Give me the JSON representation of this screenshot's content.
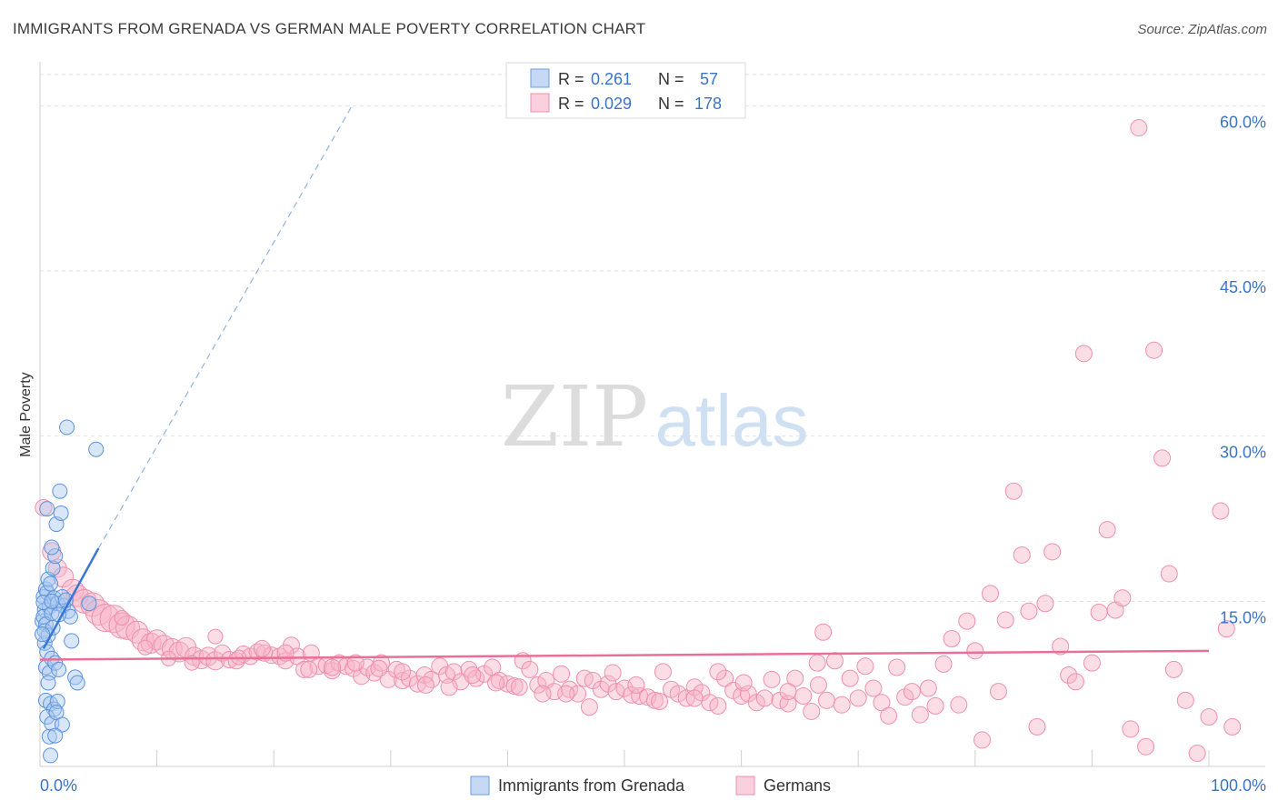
{
  "header": {
    "title": "IMMIGRANTS FROM GRENADA VS GERMAN MALE POVERTY CORRELATION CHART",
    "source": "Source: ZipAtlas.com"
  },
  "watermark": {
    "zip": "ZIP",
    "atlas": "atlas"
  },
  "legend_stats": [
    {
      "r_label": "R =",
      "r_value": "0.261",
      "n_label": "N =",
      "n_value": "57",
      "color": "#6a9fe0"
    },
    {
      "r_label": "R =",
      "r_value": "0.029",
      "n_label": "N =",
      "n_value": "178",
      "color": "#f08cab"
    }
  ],
  "legend_bottom": [
    {
      "label": "Immigrants from Grenada",
      "color": "#6a9fe0"
    },
    {
      "label": "Germans",
      "color": "#f08cab"
    }
  ],
  "chart_data": {
    "type": "scatter",
    "title": "IMMIGRANTS FROM GRENADA VS GERMAN MALE POVERTY CORRELATION CHART",
    "xlabel": "",
    "ylabel": "Male Poverty",
    "xlim": [
      0,
      100
    ],
    "ylim": [
      0,
      63
    ],
    "x_tick_labels": [
      "0.0%",
      "100.0%"
    ],
    "y_ticks": [
      15,
      30,
      45,
      60
    ],
    "y_tick_labels": [
      "15.0%",
      "30.0%",
      "45.0%",
      "60.0%"
    ],
    "grid": true,
    "legend_position": "top-center",
    "series": [
      {
        "name": "Immigrants from Grenada",
        "color": "#6a9fe0",
        "trend": {
          "x": [
            0.3,
            5.0
          ],
          "y": [
            10.7,
            19.8
          ]
        },
        "trend_extension": {
          "x": [
            5.0,
            26.8
          ],
          "y": [
            19.8,
            60.2
          ]
        },
        "points": [
          [
            0.2,
            13.2
          ],
          [
            0.3,
            15.4
          ],
          [
            0.4,
            14.2
          ],
          [
            0.5,
            16.1
          ],
          [
            0.6,
            15.8
          ],
          [
            0.3,
            13.6
          ],
          [
            0.5,
            12.9
          ],
          [
            0.8,
            14.5
          ],
          [
            1.0,
            13.9
          ],
          [
            1.2,
            15.3
          ],
          [
            0.7,
            17.0
          ],
          [
            0.9,
            16.6
          ],
          [
            0.4,
            11.2
          ],
          [
            0.6,
            10.4
          ],
          [
            1.1,
            18.0
          ],
          [
            1.3,
            19.1
          ],
          [
            0.6,
            23.4
          ],
          [
            1.4,
            22.0
          ],
          [
            1.8,
            23.0
          ],
          [
            1.7,
            25.0
          ],
          [
            2.3,
            30.8
          ],
          [
            4.8,
            28.8
          ],
          [
            1.0,
            19.9
          ],
          [
            1.5,
            14.8
          ],
          [
            2.0,
            14.6
          ],
          [
            2.4,
            14.1
          ],
          [
            2.6,
            13.6
          ],
          [
            0.5,
            9.0
          ],
          [
            0.8,
            8.5
          ],
          [
            1.0,
            9.8
          ],
          [
            1.3,
            9.4
          ],
          [
            1.6,
            8.8
          ],
          [
            0.7,
            7.6
          ],
          [
            2.7,
            11.4
          ],
          [
            3.0,
            8.1
          ],
          [
            3.2,
            7.6
          ],
          [
            0.5,
            6.0
          ],
          [
            0.9,
            5.7
          ],
          [
            1.2,
            5.2
          ],
          [
            1.5,
            5.9
          ],
          [
            0.6,
            4.5
          ],
          [
            1.0,
            3.9
          ],
          [
            1.4,
            4.9
          ],
          [
            1.9,
            3.8
          ],
          [
            0.8,
            2.7
          ],
          [
            1.3,
            2.8
          ],
          [
            0.9,
            1.0
          ],
          [
            0.4,
            12.3
          ],
          [
            0.7,
            11.9
          ],
          [
            1.1,
            12.6
          ],
          [
            0.3,
            14.9
          ],
          [
            1.6,
            13.8
          ],
          [
            1.9,
            15.4
          ],
          [
            4.2,
            14.8
          ],
          [
            2.2,
            15.1
          ],
          [
            0.2,
            12.0
          ],
          [
            1.0,
            15.0
          ]
        ],
        "sizes": [
          16,
          16,
          16,
          16,
          16,
          16,
          16,
          16,
          16,
          16,
          16,
          16,
          16,
          16,
          16,
          16,
          16,
          16,
          16,
          16,
          16,
          16,
          16,
          16,
          16,
          16,
          16,
          16,
          16,
          16,
          16,
          16,
          16,
          16,
          16,
          16,
          16,
          16,
          16,
          16,
          16,
          16,
          16,
          16,
          16,
          16,
          16,
          16,
          16,
          16,
          16,
          16,
          16,
          16,
          16,
          16,
          16
        ]
      },
      {
        "name": "Germans",
        "color": "#f08cab",
        "trend": {
          "x": [
            0,
            100
          ],
          "y": [
            9.7,
            10.5
          ]
        },
        "points": [
          [
            0.3,
            23.5
          ],
          [
            1.0,
            19.5
          ],
          [
            1.5,
            18.0
          ],
          [
            2.0,
            17.2
          ],
          [
            2.8,
            16.0
          ],
          [
            3.2,
            15.5
          ],
          [
            3.8,
            15.0
          ],
          [
            4.5,
            14.7
          ],
          [
            5.0,
            14.0
          ],
          [
            5.6,
            13.5
          ],
          [
            6.3,
            13.4
          ],
          [
            7.0,
            12.8
          ],
          [
            7.5,
            12.6
          ],
          [
            8.3,
            12.2
          ],
          [
            8.8,
            11.5
          ],
          [
            9.5,
            11.2
          ],
          [
            10.0,
            11.5
          ],
          [
            10.6,
            11.0
          ],
          [
            11.3,
            10.7
          ],
          [
            11.9,
            10.4
          ],
          [
            12.5,
            10.8
          ],
          [
            13.2,
            10.0
          ],
          [
            13.8,
            9.7
          ],
          [
            14.4,
            10.0
          ],
          [
            15.0,
            9.6
          ],
          [
            15.6,
            10.3
          ],
          [
            16.2,
            9.7
          ],
          [
            16.8,
            9.6
          ],
          [
            17.4,
            10.2
          ],
          [
            18.0,
            10.0
          ],
          [
            18.6,
            10.4
          ],
          [
            19.2,
            10.3
          ],
          [
            19.8,
            10.1
          ],
          [
            20.5,
            10.0
          ],
          [
            21.0,
            9.6
          ],
          [
            21.5,
            11.0
          ],
          [
            22.0,
            10.0
          ],
          [
            22.6,
            8.8
          ],
          [
            23.2,
            10.3
          ],
          [
            23.8,
            9.1
          ],
          [
            24.5,
            9.2
          ],
          [
            25.0,
            8.7
          ],
          [
            25.6,
            9.4
          ],
          [
            26.2,
            9.1
          ],
          [
            26.8,
            8.9
          ],
          [
            27.5,
            8.2
          ],
          [
            28.0,
            9.0
          ],
          [
            28.6,
            8.5
          ],
          [
            29.2,
            9.4
          ],
          [
            29.8,
            7.9
          ],
          [
            30.5,
            8.8
          ],
          [
            31.0,
            7.8
          ],
          [
            31.6,
            8.0
          ],
          [
            32.3,
            7.5
          ],
          [
            32.9,
            8.3
          ],
          [
            33.5,
            7.9
          ],
          [
            34.2,
            9.1
          ],
          [
            34.8,
            8.3
          ],
          [
            35.4,
            8.6
          ],
          [
            36.0,
            7.7
          ],
          [
            36.7,
            8.8
          ],
          [
            37.3,
            8.0
          ],
          [
            38.0,
            8.4
          ],
          [
            38.7,
            9.0
          ],
          [
            39.3,
            7.8
          ],
          [
            40.0,
            7.5
          ],
          [
            40.6,
            7.3
          ],
          [
            41.3,
            9.6
          ],
          [
            41.9,
            8.8
          ],
          [
            42.6,
            7.4
          ],
          [
            43.3,
            7.8
          ],
          [
            44.0,
            6.8
          ],
          [
            44.6,
            8.4
          ],
          [
            45.3,
            7.0
          ],
          [
            46.0,
            6.6
          ],
          [
            46.6,
            8.0
          ],
          [
            47.3,
            7.8
          ],
          [
            48.0,
            7.0
          ],
          [
            48.6,
            7.5
          ],
          [
            49.3,
            6.8
          ],
          [
            50.0,
            7.1
          ],
          [
            50.6,
            6.5
          ],
          [
            51.3,
            6.4
          ],
          [
            52.0,
            6.3
          ],
          [
            52.6,
            6.0
          ],
          [
            53.3,
            8.6
          ],
          [
            54.0,
            7.0
          ],
          [
            54.6,
            6.6
          ],
          [
            55.3,
            6.2
          ],
          [
            56.0,
            7.2
          ],
          [
            56.6,
            6.7
          ],
          [
            57.3,
            5.8
          ],
          [
            58.0,
            5.5
          ],
          [
            58.6,
            8.0
          ],
          [
            59.3,
            6.9
          ],
          [
            60.0,
            6.4
          ],
          [
            60.6,
            6.6
          ],
          [
            61.3,
            5.8
          ],
          [
            62.0,
            6.2
          ],
          [
            62.6,
            7.9
          ],
          [
            63.3,
            6.0
          ],
          [
            64.0,
            5.7
          ],
          [
            64.6,
            8.0
          ],
          [
            65.3,
            6.4
          ],
          [
            66.0,
            5.0
          ],
          [
            66.6,
            7.4
          ],
          [
            67.3,
            6.0
          ],
          [
            68.0,
            9.6
          ],
          [
            68.6,
            5.6
          ],
          [
            69.3,
            8.0
          ],
          [
            70.0,
            6.2
          ],
          [
            70.6,
            9.1
          ],
          [
            71.3,
            7.1
          ],
          [
            72.0,
            5.8
          ],
          [
            72.6,
            4.6
          ],
          [
            73.3,
            9.0
          ],
          [
            74.0,
            6.3
          ],
          [
            74.6,
            6.8
          ],
          [
            75.3,
            4.7
          ],
          [
            76.0,
            7.1
          ],
          [
            76.6,
            5.5
          ],
          [
            77.3,
            9.3
          ],
          [
            78.0,
            11.6
          ],
          [
            78.6,
            5.6
          ],
          [
            79.3,
            13.2
          ],
          [
            80.0,
            10.5
          ],
          [
            80.6,
            2.4
          ],
          [
            81.3,
            15.7
          ],
          [
            82.0,
            6.8
          ],
          [
            82.6,
            13.3
          ],
          [
            83.3,
            25.0
          ],
          [
            84.0,
            19.2
          ],
          [
            84.6,
            14.1
          ],
          [
            85.3,
            3.6
          ],
          [
            86.0,
            14.8
          ],
          [
            86.6,
            19.5
          ],
          [
            87.3,
            10.9
          ],
          [
            88.0,
            8.3
          ],
          [
            88.6,
            7.7
          ],
          [
            89.3,
            37.5
          ],
          [
            90.0,
            9.4
          ],
          [
            90.6,
            14.0
          ],
          [
            91.3,
            21.5
          ],
          [
            92.0,
            14.2
          ],
          [
            92.6,
            15.3
          ],
          [
            93.3,
            3.4
          ],
          [
            94.0,
            58.0
          ],
          [
            94.6,
            1.8
          ],
          [
            95.3,
            37.8
          ],
          [
            96.0,
            28.0
          ],
          [
            96.6,
            17.5
          ],
          [
            98.0,
            6.0
          ],
          [
            99.0,
            1.2
          ],
          [
            100.0,
            4.5
          ],
          [
            101.0,
            23.2
          ],
          [
            101.5,
            12.5
          ],
          [
            102.0,
            3.6
          ],
          [
            97.0,
            8.8
          ],
          [
            66.5,
            9.4
          ],
          [
            67.0,
            12.2
          ],
          [
            64.0,
            6.8
          ],
          [
            60.2,
            7.6
          ],
          [
            58.0,
            8.6
          ],
          [
            56.0,
            6.2
          ],
          [
            53.0,
            5.9
          ],
          [
            51.0,
            7.4
          ],
          [
            49.0,
            8.5
          ],
          [
            47.0,
            5.4
          ],
          [
            45.0,
            6.6
          ],
          [
            43.0,
            6.6
          ],
          [
            41.0,
            7.2
          ],
          [
            39.0,
            7.6
          ],
          [
            37.0,
            8.3
          ],
          [
            35.0,
            7.2
          ],
          [
            33.0,
            7.4
          ],
          [
            31.0,
            8.6
          ],
          [
            29.0,
            8.9
          ],
          [
            27.0,
            9.4
          ],
          [
            25.0,
            9.0
          ],
          [
            23.0,
            8.8
          ],
          [
            21.0,
            10.3
          ],
          [
            19.0,
            10.7
          ],
          [
            17.0,
            9.9
          ],
          [
            15.0,
            11.8
          ],
          [
            13.0,
            9.4
          ],
          [
            11.0,
            9.8
          ],
          [
            9.0,
            10.8
          ],
          [
            7.0,
            13.5
          ]
        ],
        "sizes": [
          18,
          20,
          20,
          22,
          24,
          24,
          26,
          26,
          28,
          30,
          30,
          28,
          26,
          24,
          24,
          22,
          22,
          22,
          22,
          22,
          22,
          20,
          20,
          20,
          20,
          18,
          18,
          18,
          18,
          18,
          18,
          18,
          18,
          18,
          18,
          18,
          18,
          18,
          18,
          18,
          18,
          18,
          18,
          18,
          18,
          18,
          18,
          18,
          18,
          18,
          18,
          18,
          18,
          18,
          18,
          18,
          18,
          18,
          18,
          18,
          18,
          18,
          18,
          18,
          18,
          18,
          18,
          18,
          18,
          18,
          18,
          18,
          18,
          18,
          18,
          18,
          18,
          18,
          18,
          18,
          18,
          18,
          18,
          18,
          18,
          18,
          18,
          18,
          18,
          18,
          18,
          18,
          18,
          18,
          18,
          18,
          18,
          18,
          18,
          18,
          18,
          18,
          18,
          18,
          18,
          18,
          18,
          18,
          18,
          18,
          18,
          18,
          18,
          18,
          18,
          18,
          18,
          18,
          18,
          18,
          18,
          18,
          18,
          18,
          18,
          18,
          18,
          18,
          18,
          18,
          18,
          18,
          18,
          18,
          18,
          18,
          18,
          18,
          18,
          18,
          18,
          18,
          18,
          18,
          18,
          18,
          18,
          18,
          18,
          18,
          18,
          18,
          18,
          18,
          18,
          18,
          18,
          18,
          18,
          18,
          18,
          18,
          18,
          18,
          18,
          18,
          18,
          18,
          18,
          18,
          18,
          18,
          18,
          18,
          18,
          18,
          18,
          18,
          18,
          18,
          18,
          18
        ]
      }
    ]
  }
}
